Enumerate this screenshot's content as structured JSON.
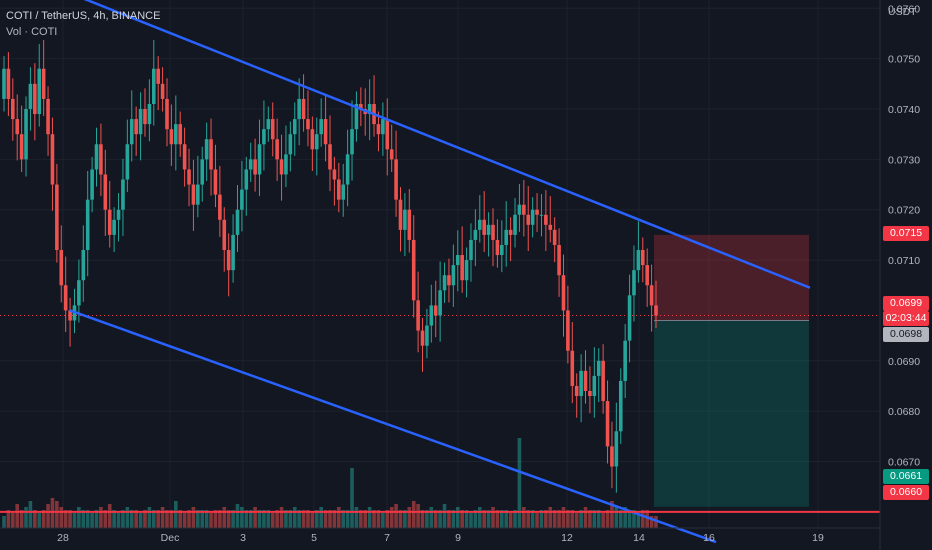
{
  "header": {
    "symbol_line": "COTI / TetherUS, 4h, BINANCE",
    "volume_line": "Vol · COTI"
  },
  "price_axis": {
    "currency": "USDT",
    "labels": [
      "0.0760",
      "0.0750",
      "0.0740",
      "0.0730",
      "0.0720",
      "0.0710",
      "0.0690",
      "0.0680",
      "0.0670"
    ]
  },
  "time_axis": {
    "labels": [
      "28",
      "Dec",
      "3",
      "5",
      "7",
      "9",
      "12",
      "14",
      "16",
      "19"
    ]
  },
  "tags": {
    "target_top": "0.0715",
    "last_price": "0.0699",
    "countdown": "02:03:44",
    "entry": "0.0698",
    "stop_green": "0.0661",
    "support": "0.0660"
  },
  "colors": {
    "background": "#131722",
    "up": "#26a69a",
    "down": "#ef5350",
    "trendline": "#2962ff",
    "support": "#f23645",
    "grid": "#1e222d"
  },
  "chart_data": {
    "type": "candlestick",
    "timeframe": "4h",
    "ylim": [
      0.0656,
      0.0764
    ],
    "support_level": 0.066,
    "channel_upper": [
      [
        "Nov 27",
        0.0762
      ],
      [
        "Dec 18",
        0.0702
      ]
    ],
    "channel_lower": [
      [
        "Nov 27",
        0.07
      ],
      [
        "Dec 16",
        0.0655
      ]
    ],
    "position": {
      "entry": 0.0698,
      "target": 0.0715,
      "stop": 0.0661
    },
    "price_series_close": [
      0.0748,
      0.0742,
      0.0738,
      0.0735,
      0.073,
      0.074,
      0.0745,
      0.0739,
      0.0748,
      0.0742,
      0.0735,
      0.0725,
      0.0712,
      0.0705,
      0.07,
      0.0698,
      0.0701,
      0.0706,
      0.0712,
      0.0722,
      0.0728,
      0.0733,
      0.0727,
      0.072,
      0.0715,
      0.0718,
      0.072,
      0.0726,
      0.0733,
      0.0738,
      0.0735,
      0.074,
      0.0737,
      0.0741,
      0.0748,
      0.0745,
      0.0742,
      0.0736,
      0.0733,
      0.0737,
      0.0733,
      0.0728,
      0.0725,
      0.0721,
      0.0725,
      0.073,
      0.0734,
      0.0728,
      0.0723,
      0.0718,
      0.0712,
      0.0708,
      0.0715,
      0.072,
      0.0724,
      0.0728,
      0.073,
      0.0727,
      0.0733,
      0.0736,
      0.0738,
      0.0734,
      0.073,
      0.0727,
      0.0731,
      0.0735,
      0.0738,
      0.0742,
      0.0738,
      0.0736,
      0.0732,
      0.0735,
      0.0738,
      0.0733,
      0.0728,
      0.0726,
      0.0722,
      0.0725,
      0.0731,
      0.0736,
      0.0741,
      0.074,
      0.0739,
      0.0741,
      0.0737,
      0.0735,
      0.0738,
      0.0732,
      0.073,
      0.0722,
      0.0716,
      0.072,
      0.0714,
      0.0702,
      0.0696,
      0.0693,
      0.0697,
      0.0701,
      0.0699,
      0.0704,
      0.0707,
      0.0705,
      0.0709,
      0.0711,
      0.0706,
      0.071,
      0.0714,
      0.0716,
      0.0718,
      0.0715,
      0.0717,
      0.0714,
      0.0711,
      0.0713,
      0.0716,
      0.0715,
      0.0719,
      0.0721,
      0.0719,
      0.0717,
      0.072,
      0.0719,
      0.0719,
      0.0717,
      0.0716,
      0.0713,
      0.0707,
      0.07,
      0.0692,
      0.0685,
      0.0683,
      0.0688,
      0.0684,
      0.0683,
      0.0687,
      0.069,
      0.0682,
      0.0673,
      0.0669,
      0.0676,
      0.0686,
      0.0694,
      0.0703,
      0.0708,
      0.0712,
      0.0709,
      0.0705,
      0.0701,
      0.0699
    ],
    "volume_relative": [
      0.2,
      0.3,
      0.25,
      0.4,
      0.3,
      0.35,
      0.45,
      0.3,
      0.25,
      0.3,
      0.4,
      0.5,
      0.45,
      0.35,
      0.3,
      0.3,
      0.25,
      0.35,
      0.3,
      0.3,
      0.25,
      0.3,
      0.35,
      0.3,
      0.4,
      0.3,
      0.25,
      0.3,
      0.35,
      0.3,
      0.3,
      0.25,
      0.3,
      0.35,
      0.3,
      0.3,
      0.35,
      0.3,
      0.3,
      0.45,
      0.3,
      0.25,
      0.3,
      0.35,
      0.3,
      0.3,
      0.3,
      0.25,
      0.3,
      0.3,
      0.35,
      0.3,
      0.3,
      0.4,
      0.35,
      0.3,
      0.3,
      0.35,
      0.3,
      0.3,
      0.3,
      0.25,
      0.3,
      0.35,
      0.3,
      0.3,
      0.35,
      0.3,
      0.3,
      0.3,
      0.25,
      0.3,
      0.35,
      0.3,
      0.3,
      0.3,
      0.35,
      0.3,
      0.3,
      1.0,
      0.35,
      0.3,
      0.3,
      0.35,
      0.3,
      0.3,
      0.25,
      0.3,
      0.35,
      0.4,
      0.3,
      0.3,
      0.35,
      0.45,
      0.4,
      0.3,
      0.3,
      0.35,
      0.3,
      0.3,
      0.4,
      0.3,
      0.3,
      0.35,
      0.3,
      0.3,
      0.25,
      0.3,
      0.35,
      0.3,
      0.3,
      0.35,
      0.3,
      0.3,
      0.3,
      0.25,
      0.3,
      1.5,
      0.35,
      0.3,
      0.3,
      0.25,
      0.3,
      0.3,
      0.35,
      0.3,
      0.3,
      0.35,
      0.3,
      0.3,
      0.25,
      0.3,
      0.35,
      0.3,
      0.3,
      0.3,
      0.25,
      0.3,
      0.45,
      0.35,
      0.3,
      0.35,
      0.3,
      0.3,
      0.25,
      0.3,
      0.3,
      0.2,
      0.2,
      0.15
    ]
  }
}
